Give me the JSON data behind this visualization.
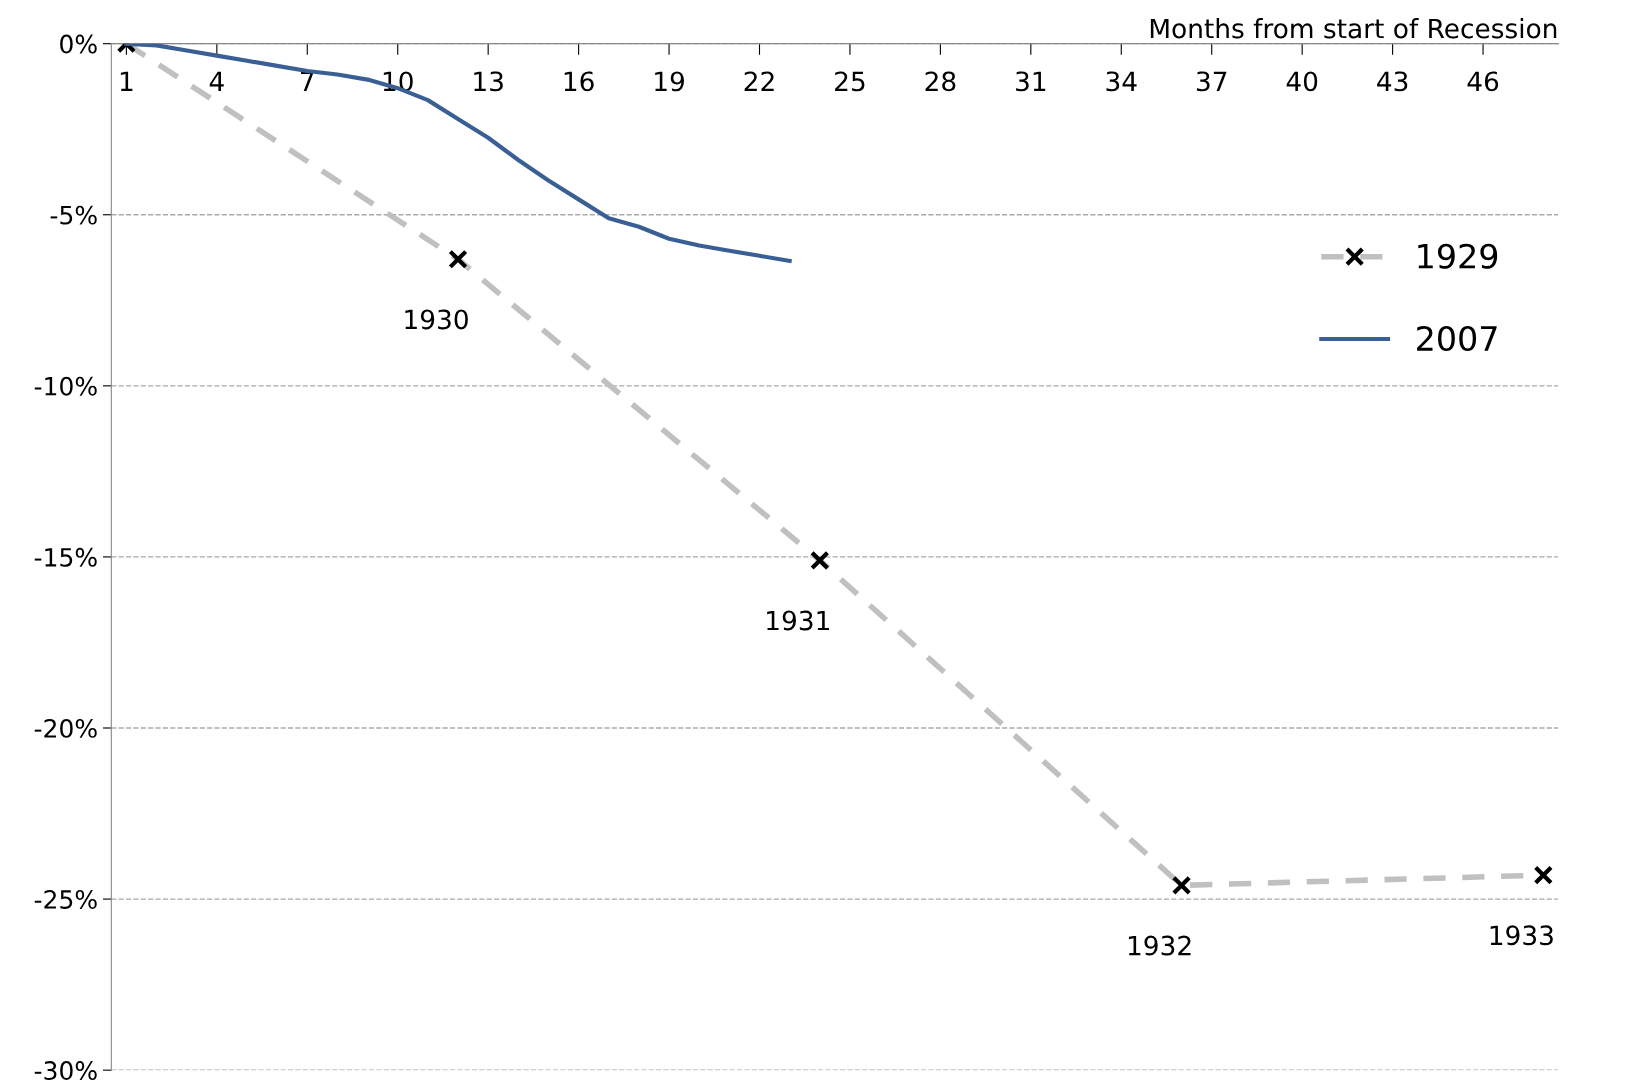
{
  "chart_data": {
    "type": "line",
    "xlabel": "Months from start of Recession",
    "xlim": [
      0.5,
      48.5
    ],
    "xticks": [
      1,
      4,
      7,
      10,
      13,
      16,
      19,
      22,
      25,
      28,
      31,
      34,
      37,
      40,
      43,
      46
    ],
    "ylim": [
      -30,
      0
    ],
    "yticks": [
      {
        "value": 0,
        "label": "0%"
      },
      {
        "value": -5,
        "label": "-5%"
      },
      {
        "value": -10,
        "label": "-10%"
      },
      {
        "value": -15,
        "label": "-15%"
      },
      {
        "value": -20,
        "label": "-20%"
      },
      {
        "value": -25,
        "label": "-25%"
      },
      {
        "value": -30,
        "label": "-30%"
      }
    ],
    "grid": "y",
    "legend": "right",
    "series": [
      {
        "name": "1929",
        "color": "#c0c0c0",
        "line_style": "dashed",
        "marker": "cross",
        "x": [
          1,
          12,
          24,
          36,
          48
        ],
        "values": [
          0,
          -6.3,
          -15.1,
          -24.6,
          -24.3
        ]
      },
      {
        "name": "2007",
        "color": "#3a5f94",
        "line_style": "solid",
        "marker": "none",
        "x": [
          1,
          2,
          3,
          4,
          5,
          6,
          7,
          8,
          9,
          10,
          11,
          12,
          13,
          14,
          15,
          16,
          17,
          18,
          19,
          20,
          21,
          22,
          23
        ],
        "values": [
          0,
          -0.05,
          -0.2,
          -0.35,
          -0.5,
          -0.65,
          -0.8,
          -0.9,
          -1.05,
          -1.3,
          -1.65,
          -2.2,
          -2.75,
          -3.4,
          -4.0,
          -4.55,
          -5.1,
          -5.35,
          -5.7,
          -5.9,
          -6.05,
          -6.2,
          -6.35
        ]
      }
    ],
    "annotations": [
      {
        "text": "1930",
        "x": 12,
        "y": -6.3
      },
      {
        "text": "1931",
        "x": 24,
        "y": -15.1
      },
      {
        "text": "1932",
        "x": 36,
        "y": -24.6
      },
      {
        "text": "1933",
        "x": 48,
        "y": -24.3
      }
    ]
  }
}
